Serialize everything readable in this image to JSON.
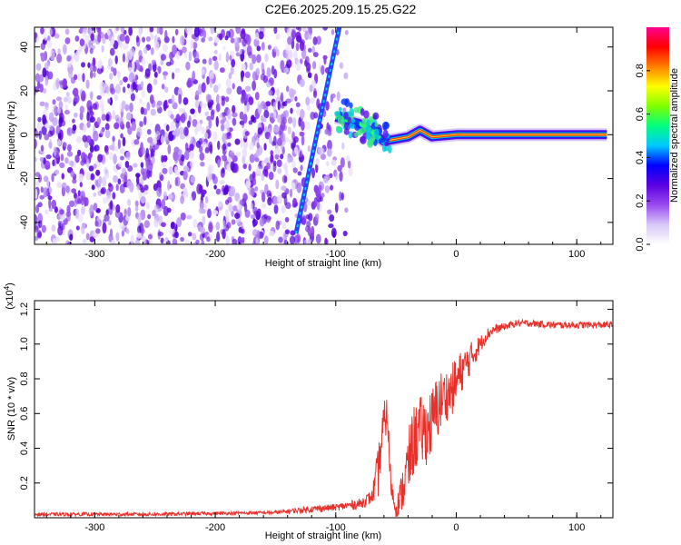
{
  "figure_title": "C2E6.2025.209.15.25.G22",
  "chart_data": [
    {
      "type": "heatmap",
      "xlabel": "Height of straight line (km)",
      "ylabel": "Frequency (Hz)",
      "xlim": [
        -350,
        130
      ],
      "ylim": [
        -50,
        49
      ],
      "xticks": [
        -300,
        -200,
        -100,
        0,
        100
      ],
      "yticks": [
        -40,
        -20,
        0,
        20,
        40
      ],
      "colorbar": {
        "label": "Normalized spectral amplitude",
        "range": [
          0,
          1
        ],
        "ticks": [
          "0.0",
          "0.2",
          "0.4",
          "0.6",
          "0.8"
        ],
        "colormap": [
          "#ffffff",
          "#d8c8f8",
          "#9a4af0",
          "#5a00e0",
          "#0000ff",
          "#00c8ff",
          "#00ff80",
          "#80ff00",
          "#ffff00",
          "#ff8000",
          "#ff0000",
          "#ff0090"
        ]
      },
      "features": [
        {
          "name": "diagonal ridge",
          "from": [
            -133,
            -45
          ],
          "to": [
            -97,
            49
          ],
          "amplitude": 0.3
        },
        {
          "name": "tone",
          "points": [
            [
              -100,
              8
            ],
            [
              -80,
              5
            ],
            [
              -60,
              -3
            ],
            [
              -40,
              -1
            ],
            [
              -30,
              2
            ],
            [
              -20,
              -1
            ],
            [
              0,
              0
            ],
            [
              125,
              0
            ]
          ],
          "amplitude": 0.95
        }
      ],
      "noise_region_x": [
        -350,
        -100
      ]
    },
    {
      "type": "line",
      "xlabel": "Height of straight line (km)",
      "ylabel": "SNR (10 * v/v)",
      "y_multiplier": "(x10^4)",
      "xlim": [
        -350,
        130
      ],
      "ylim": [
        0,
        1.25
      ],
      "xticks": [
        -300,
        -200,
        -100,
        0,
        100
      ],
      "yticks": [
        0.2,
        0.4,
        0.6,
        0.8,
        1.0,
        1.2
      ],
      "color": "#e8302a",
      "series": [
        {
          "x": [
            -350,
            -300,
            -250,
            -200,
            -150,
            -120,
            -100,
            -80,
            -70,
            -65,
            -60,
            -57,
            -55,
            -52,
            -50,
            -45,
            -40,
            -35,
            -30,
            -25,
            -20,
            -15,
            -10,
            -5,
            0,
            5,
            10,
            15,
            20,
            25,
            30,
            40,
            50,
            60,
            80,
            100,
            125
          ],
          "y": [
            0.02,
            0.02,
            0.02,
            0.025,
            0.03,
            0.05,
            0.06,
            0.08,
            0.12,
            0.25,
            0.55,
            0.6,
            0.25,
            0.1,
            0.05,
            0.15,
            0.3,
            0.45,
            0.5,
            0.5,
            0.55,
            0.65,
            0.7,
            0.72,
            0.78,
            0.85,
            0.9,
            0.95,
            1.0,
            1.05,
            1.08,
            1.1,
            1.12,
            1.12,
            1.11,
            1.11,
            1.11
          ],
          "noise_amplitude": [
            0.01,
            0.01,
            0.01,
            0.01,
            0.01,
            0.02,
            0.02,
            0.03,
            0.04,
            0.15,
            0.12,
            0.1,
            0.1,
            0.05,
            0.05,
            0.12,
            0.2,
            0.2,
            0.2,
            0.2,
            0.2,
            0.2,
            0.15,
            0.15,
            0.15,
            0.12,
            0.1,
            0.08,
            0.05,
            0.04,
            0.03,
            0.02,
            0.02,
            0.02,
            0.02,
            0.02,
            0.02
          ]
        }
      ]
    }
  ]
}
